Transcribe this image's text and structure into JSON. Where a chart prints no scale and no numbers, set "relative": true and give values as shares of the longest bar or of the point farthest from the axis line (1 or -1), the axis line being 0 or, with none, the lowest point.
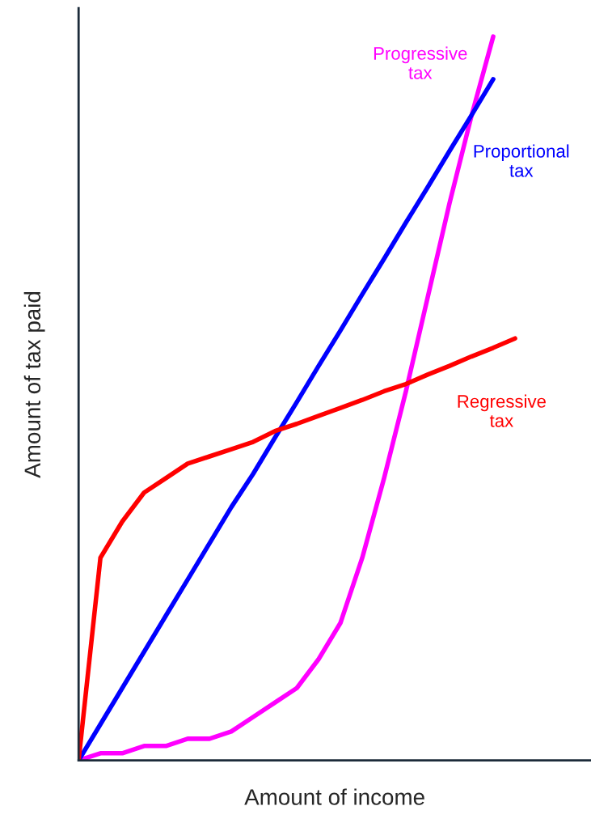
{
  "chart_data": {
    "type": "line",
    "relative": true,
    "xlabel": "Amount of income",
    "ylabel": "Amount of tax paid",
    "tick_labels": false,
    "legend": false,
    "marker": "none",
    "line_style": "solid",
    "categories": [
      null,
      null,
      null,
      null,
      null,
      null,
      null,
      null,
      null,
      null,
      null,
      null,
      null,
      null,
      null,
      null,
      null,
      null,
      null,
      null,
      null
    ],
    "series": [
      {
        "name": "Progressive\ntax",
        "color": "#ff00ff",
        "values": [
          0,
          0.01,
          0.01,
          0.02,
          0.02,
          0.03,
          0.03,
          0.04,
          0.06,
          0.08,
          0.1,
          0.14,
          0.19,
          0.28,
          0.39,
          0.51,
          0.64,
          0.77,
          0.89,
          1.0,
          null
        ]
      },
      {
        "name": "Proportional\ntax",
        "color": "#0000ff",
        "values": [
          0,
          0.05,
          0.1,
          0.15,
          0.2,
          0.25,
          0.3,
          0.35,
          0.396,
          0.446,
          0.495,
          0.545,
          0.594,
          0.644,
          0.693,
          0.743,
          0.792,
          0.842,
          0.891,
          0.941,
          null
        ]
      },
      {
        "name": "Regressive\ntax",
        "color": "#ff0000",
        "values": [
          0,
          0.28,
          0.33,
          0.37,
          0.39,
          0.41,
          0.42,
          0.43,
          0.44,
          0.455,
          0.465,
          0.476,
          0.487,
          0.498,
          0.51,
          0.52,
          0.533,
          0.545,
          0.558,
          0.57,
          0.583
        ]
      }
    ]
  }
}
